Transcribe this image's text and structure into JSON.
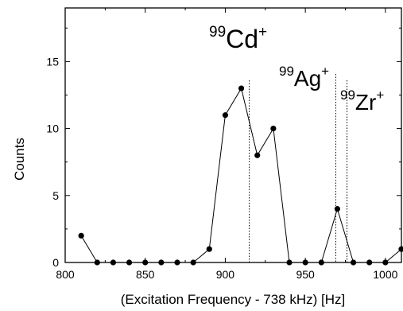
{
  "chart_data": {
    "type": "scatter",
    "xlabel": "(Excitation Frequency - 738 kHz) [Hz]",
    "ylabel": "Counts",
    "xlim": [
      800,
      1010
    ],
    "ylim": [
      0,
      19
    ],
    "xticks": [
      800,
      850,
      900,
      950,
      1000
    ],
    "yticks": [
      0,
      5,
      10,
      15
    ],
    "grid": false,
    "series": [
      {
        "x": [
          810,
          820,
          830,
          840,
          850,
          860,
          870,
          880,
          890,
          900,
          910,
          920,
          930,
          940,
          950,
          960,
          970,
          980,
          990,
          1000,
          1010
        ],
        "y": [
          2,
          0,
          0,
          0,
          0,
          0,
          0,
          0,
          1,
          11,
          13,
          8,
          10,
          0,
          0,
          0,
          4,
          0,
          0,
          0,
          1
        ]
      }
    ],
    "annotations": [
      {
        "mass": "99",
        "symbol": "Cd",
        "charge": "+",
        "x": 915
      },
      {
        "mass": "99",
        "symbol": "Ag",
        "charge": "+",
        "x": 969
      },
      {
        "mass": "99",
        "symbol": "Zr",
        "charge": "+",
        "x": 976
      }
    ]
  }
}
